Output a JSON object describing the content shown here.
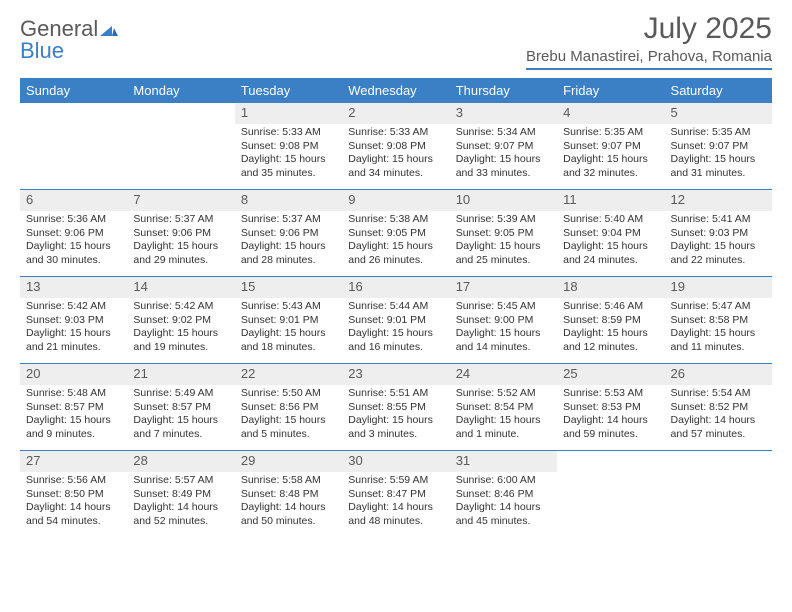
{
  "brand": {
    "name1": "General",
    "name2": "Blue"
  },
  "title": "July 2025",
  "location": "Brebu Manastirei, Prahova, Romania",
  "colors": {
    "accent": "#3b7fc4",
    "header_bg": "#3b7fc4",
    "header_text": "#ffffff",
    "daynum_bg": "#eeeeee",
    "text": "#333333",
    "muted": "#5a5a5a",
    "page_bg": "#ffffff"
  },
  "day_headers": [
    "Sunday",
    "Monday",
    "Tuesday",
    "Wednesday",
    "Thursday",
    "Friday",
    "Saturday"
  ],
  "weeks": [
    [
      {
        "empty": true
      },
      {
        "empty": true
      },
      {
        "day": "1",
        "sunrise": "Sunrise: 5:33 AM",
        "sunset": "Sunset: 9:08 PM",
        "daylight1": "Daylight: 15 hours",
        "daylight2": "and 35 minutes."
      },
      {
        "day": "2",
        "sunrise": "Sunrise: 5:33 AM",
        "sunset": "Sunset: 9:08 PM",
        "daylight1": "Daylight: 15 hours",
        "daylight2": "and 34 minutes."
      },
      {
        "day": "3",
        "sunrise": "Sunrise: 5:34 AM",
        "sunset": "Sunset: 9:07 PM",
        "daylight1": "Daylight: 15 hours",
        "daylight2": "and 33 minutes."
      },
      {
        "day": "4",
        "sunrise": "Sunrise: 5:35 AM",
        "sunset": "Sunset: 9:07 PM",
        "daylight1": "Daylight: 15 hours",
        "daylight2": "and 32 minutes."
      },
      {
        "day": "5",
        "sunrise": "Sunrise: 5:35 AM",
        "sunset": "Sunset: 9:07 PM",
        "daylight1": "Daylight: 15 hours",
        "daylight2": "and 31 minutes."
      }
    ],
    [
      {
        "day": "6",
        "sunrise": "Sunrise: 5:36 AM",
        "sunset": "Sunset: 9:06 PM",
        "daylight1": "Daylight: 15 hours",
        "daylight2": "and 30 minutes."
      },
      {
        "day": "7",
        "sunrise": "Sunrise: 5:37 AM",
        "sunset": "Sunset: 9:06 PM",
        "daylight1": "Daylight: 15 hours",
        "daylight2": "and 29 minutes."
      },
      {
        "day": "8",
        "sunrise": "Sunrise: 5:37 AM",
        "sunset": "Sunset: 9:06 PM",
        "daylight1": "Daylight: 15 hours",
        "daylight2": "and 28 minutes."
      },
      {
        "day": "9",
        "sunrise": "Sunrise: 5:38 AM",
        "sunset": "Sunset: 9:05 PM",
        "daylight1": "Daylight: 15 hours",
        "daylight2": "and 26 minutes."
      },
      {
        "day": "10",
        "sunrise": "Sunrise: 5:39 AM",
        "sunset": "Sunset: 9:05 PM",
        "daylight1": "Daylight: 15 hours",
        "daylight2": "and 25 minutes."
      },
      {
        "day": "11",
        "sunrise": "Sunrise: 5:40 AM",
        "sunset": "Sunset: 9:04 PM",
        "daylight1": "Daylight: 15 hours",
        "daylight2": "and 24 minutes."
      },
      {
        "day": "12",
        "sunrise": "Sunrise: 5:41 AM",
        "sunset": "Sunset: 9:03 PM",
        "daylight1": "Daylight: 15 hours",
        "daylight2": "and 22 minutes."
      }
    ],
    [
      {
        "day": "13",
        "sunrise": "Sunrise: 5:42 AM",
        "sunset": "Sunset: 9:03 PM",
        "daylight1": "Daylight: 15 hours",
        "daylight2": "and 21 minutes."
      },
      {
        "day": "14",
        "sunrise": "Sunrise: 5:42 AM",
        "sunset": "Sunset: 9:02 PM",
        "daylight1": "Daylight: 15 hours",
        "daylight2": "and 19 minutes."
      },
      {
        "day": "15",
        "sunrise": "Sunrise: 5:43 AM",
        "sunset": "Sunset: 9:01 PM",
        "daylight1": "Daylight: 15 hours",
        "daylight2": "and 18 minutes."
      },
      {
        "day": "16",
        "sunrise": "Sunrise: 5:44 AM",
        "sunset": "Sunset: 9:01 PM",
        "daylight1": "Daylight: 15 hours",
        "daylight2": "and 16 minutes."
      },
      {
        "day": "17",
        "sunrise": "Sunrise: 5:45 AM",
        "sunset": "Sunset: 9:00 PM",
        "daylight1": "Daylight: 15 hours",
        "daylight2": "and 14 minutes."
      },
      {
        "day": "18",
        "sunrise": "Sunrise: 5:46 AM",
        "sunset": "Sunset: 8:59 PM",
        "daylight1": "Daylight: 15 hours",
        "daylight2": "and 12 minutes."
      },
      {
        "day": "19",
        "sunrise": "Sunrise: 5:47 AM",
        "sunset": "Sunset: 8:58 PM",
        "daylight1": "Daylight: 15 hours",
        "daylight2": "and 11 minutes."
      }
    ],
    [
      {
        "day": "20",
        "sunrise": "Sunrise: 5:48 AM",
        "sunset": "Sunset: 8:57 PM",
        "daylight1": "Daylight: 15 hours",
        "daylight2": "and 9 minutes."
      },
      {
        "day": "21",
        "sunrise": "Sunrise: 5:49 AM",
        "sunset": "Sunset: 8:57 PM",
        "daylight1": "Daylight: 15 hours",
        "daylight2": "and 7 minutes."
      },
      {
        "day": "22",
        "sunrise": "Sunrise: 5:50 AM",
        "sunset": "Sunset: 8:56 PM",
        "daylight1": "Daylight: 15 hours",
        "daylight2": "and 5 minutes."
      },
      {
        "day": "23",
        "sunrise": "Sunrise: 5:51 AM",
        "sunset": "Sunset: 8:55 PM",
        "daylight1": "Daylight: 15 hours",
        "daylight2": "and 3 minutes."
      },
      {
        "day": "24",
        "sunrise": "Sunrise: 5:52 AM",
        "sunset": "Sunset: 8:54 PM",
        "daylight1": "Daylight: 15 hours",
        "daylight2": "and 1 minute."
      },
      {
        "day": "25",
        "sunrise": "Sunrise: 5:53 AM",
        "sunset": "Sunset: 8:53 PM",
        "daylight1": "Daylight: 14 hours",
        "daylight2": "and 59 minutes."
      },
      {
        "day": "26",
        "sunrise": "Sunrise: 5:54 AM",
        "sunset": "Sunset: 8:52 PM",
        "daylight1": "Daylight: 14 hours",
        "daylight2": "and 57 minutes."
      }
    ],
    [
      {
        "day": "27",
        "sunrise": "Sunrise: 5:56 AM",
        "sunset": "Sunset: 8:50 PM",
        "daylight1": "Daylight: 14 hours",
        "daylight2": "and 54 minutes."
      },
      {
        "day": "28",
        "sunrise": "Sunrise: 5:57 AM",
        "sunset": "Sunset: 8:49 PM",
        "daylight1": "Daylight: 14 hours",
        "daylight2": "and 52 minutes."
      },
      {
        "day": "29",
        "sunrise": "Sunrise: 5:58 AM",
        "sunset": "Sunset: 8:48 PM",
        "daylight1": "Daylight: 14 hours",
        "daylight2": "and 50 minutes."
      },
      {
        "day": "30",
        "sunrise": "Sunrise: 5:59 AM",
        "sunset": "Sunset: 8:47 PM",
        "daylight1": "Daylight: 14 hours",
        "daylight2": "and 48 minutes."
      },
      {
        "day": "31",
        "sunrise": "Sunrise: 6:00 AM",
        "sunset": "Sunset: 8:46 PM",
        "daylight1": "Daylight: 14 hours",
        "daylight2": "and 45 minutes."
      },
      {
        "empty": true
      },
      {
        "empty": true
      }
    ]
  ]
}
